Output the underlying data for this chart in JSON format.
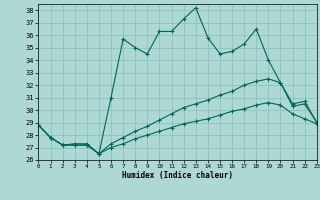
{
  "xlabel": "Humidex (Indice chaleur)",
  "background_color": "#aed8d4",
  "grid_color": "#7db8b4",
  "line_color": "#006655",
  "ylim": [
    26,
    38.5
  ],
  "xlim": [
    0,
    23
  ],
  "yticks": [
    26,
    27,
    28,
    29,
    30,
    31,
    32,
    33,
    34,
    35,
    36,
    37,
    38
  ],
  "xticks": [
    0,
    1,
    2,
    3,
    4,
    5,
    6,
    7,
    8,
    9,
    10,
    11,
    12,
    13,
    14,
    15,
    16,
    17,
    18,
    19,
    20,
    21,
    22,
    23
  ],
  "line1_x": [
    0,
    1,
    2,
    3,
    4,
    5,
    6,
    7,
    8,
    9,
    10,
    11,
    12,
    13,
    14,
    15,
    16,
    17,
    18,
    19,
    20,
    21,
    22,
    23
  ],
  "line1_y": [
    28.8,
    27.8,
    27.2,
    27.3,
    27.3,
    26.5,
    31.0,
    35.7,
    35.0,
    34.5,
    36.3,
    36.3,
    37.3,
    38.2,
    35.8,
    34.5,
    34.7,
    35.3,
    36.5,
    34.0,
    32.2,
    30.5,
    30.7,
    29.0
  ],
  "line2_x": [
    0,
    1,
    2,
    3,
    4,
    5,
    6,
    7,
    8,
    9,
    10,
    11,
    12,
    13,
    14,
    15,
    16,
    17,
    18,
    19,
    20,
    21,
    22,
    23
  ],
  "line2_y": [
    28.8,
    27.8,
    27.2,
    27.2,
    27.2,
    26.5,
    27.3,
    27.8,
    28.3,
    28.7,
    29.2,
    29.7,
    30.2,
    30.5,
    30.8,
    31.2,
    31.5,
    32.0,
    32.3,
    32.5,
    32.2,
    30.3,
    30.5,
    29.0
  ],
  "line3_x": [
    0,
    1,
    2,
    3,
    4,
    5,
    6,
    7,
    8,
    9,
    10,
    11,
    12,
    13,
    14,
    15,
    16,
    17,
    18,
    19,
    20,
    21,
    22,
    23
  ],
  "line3_y": [
    28.8,
    27.8,
    27.2,
    27.2,
    27.2,
    26.5,
    27.0,
    27.3,
    27.7,
    28.0,
    28.3,
    28.6,
    28.9,
    29.1,
    29.3,
    29.6,
    29.9,
    30.1,
    30.4,
    30.6,
    30.4,
    29.7,
    29.3,
    28.9
  ]
}
